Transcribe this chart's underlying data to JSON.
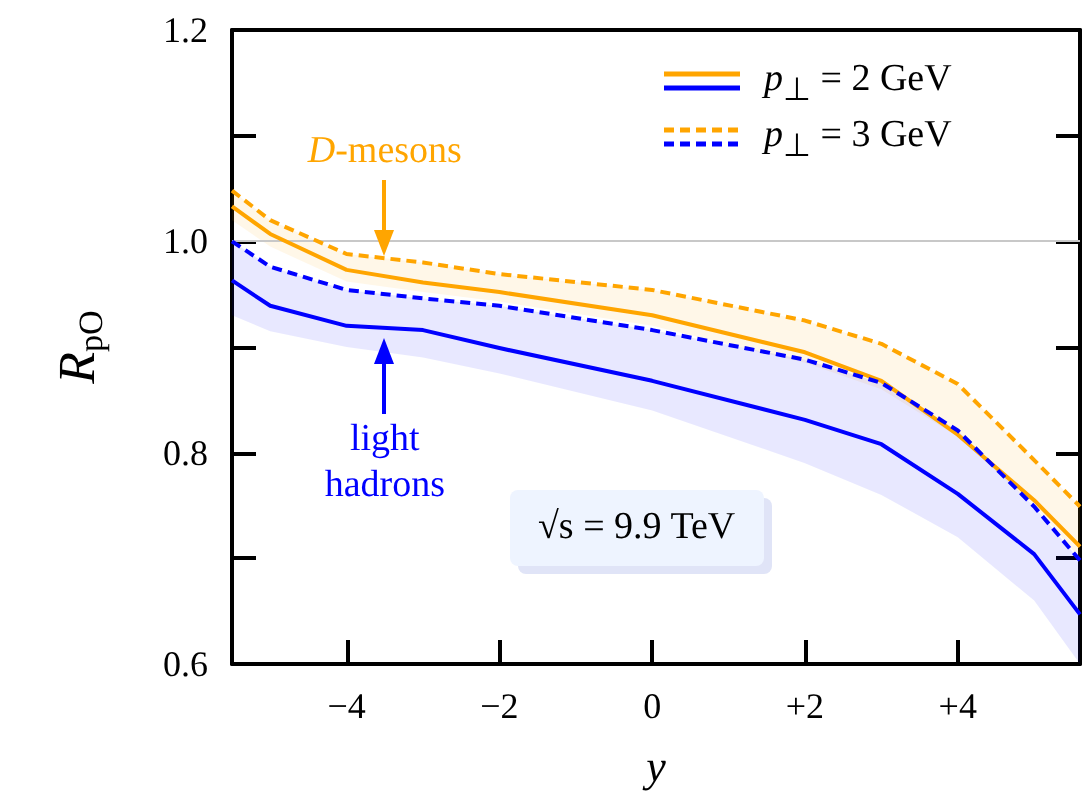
{
  "chart_data": {
    "type": "line",
    "x": [
      -5.5,
      -5,
      -4,
      -3,
      -2,
      0,
      2,
      3,
      4,
      5,
      5.6
    ],
    "series": [
      {
        "name": "p$_{⊥}$ = 2 GeV",
        "color": "#ffa500",
        "line_style": "solid",
        "values": [
          1.033,
          1.007,
          0.973,
          0.961,
          0.952,
          0.93,
          0.895,
          0.868,
          0.817,
          0.755,
          0.711
        ],
        "lower": [
          1.02,
          0.995,
          0.962,
          0.952,
          0.943,
          0.92,
          0.885,
          0.86,
          0.815,
          0.75,
          0.7
        ],
        "upper": [
          1.048,
          1.02,
          0.988,
          0.98,
          0.969,
          0.954,
          0.925,
          0.903,
          0.865,
          0.793,
          0.749
        ]
      },
      {
        "name": "p$_{⊥}$ = 3 GeV",
        "color": "#ffa500",
        "line_style": "dashed",
        "values": [
          1.048,
          1.02,
          0.988,
          0.98,
          0.969,
          0.954,
          0.925,
          0.903,
          0.865,
          0.793,
          0.749
        ]
      },
      {
        "color": "#0000ff",
        "line_style": "solid",
        "values": [
          0.963,
          0.939,
          0.92,
          0.916,
          0.899,
          0.868,
          0.831,
          0.808,
          0.761,
          0.704,
          0.647
        ],
        "lower": [
          0.93,
          0.915,
          0.9,
          0.89,
          0.875,
          0.84,
          0.79,
          0.76,
          0.72,
          0.66,
          0.6
        ],
        "upper": [
          1.0,
          0.976,
          0.954,
          0.946,
          0.939,
          0.916,
          0.888,
          0.866,
          0.821,
          0.749,
          0.698
        ]
      },
      {
        "color": "#0000ff",
        "line_style": "dashed",
        "values": [
          1.0,
          0.976,
          0.954,
          0.946,
          0.939,
          0.916,
          0.888,
          0.866,
          0.821,
          0.749,
          0.698
        ]
      }
    ],
    "xlabel": "y",
    "ylabel": "R$_{pO}$",
    "xlim": [
      -5.5,
      5.6
    ],
    "xticks": [
      {
        "value": -4,
        "label": "−4"
      },
      {
        "value": -2,
        "label": "−2"
      },
      0,
      {
        "value": 2,
        "label": "+2"
      },
      {
        "value": 4,
        "label": "+4"
      }
    ],
    "ylim": [
      0.6,
      1.2
    ],
    "yticks": [
      0.6,
      {
        "value": 0.7,
        "label": null
      },
      0.8,
      {
        "value": 0.9,
        "label": null
      },
      {
        "value": 1.0,
        "label": "1.0"
      },
      {
        "value": 1.1,
        "label": null
      },
      1.2
    ],
    "ref_lines": [
      {
        "axis": "y",
        "value": 1.0,
        "color": "#c8c8c8"
      }
    ],
    "annotations": [
      {
        "text": "D-mesons",
        "x": -3.5,
        "y": 0.986
      },
      {
        "text": "light hadrons",
        "x": -3.5,
        "y": 0.908
      },
      "√s = 9.9 TeV"
    ],
    "legend": "top right",
    "grid": false,
    "marker": "none"
  }
}
